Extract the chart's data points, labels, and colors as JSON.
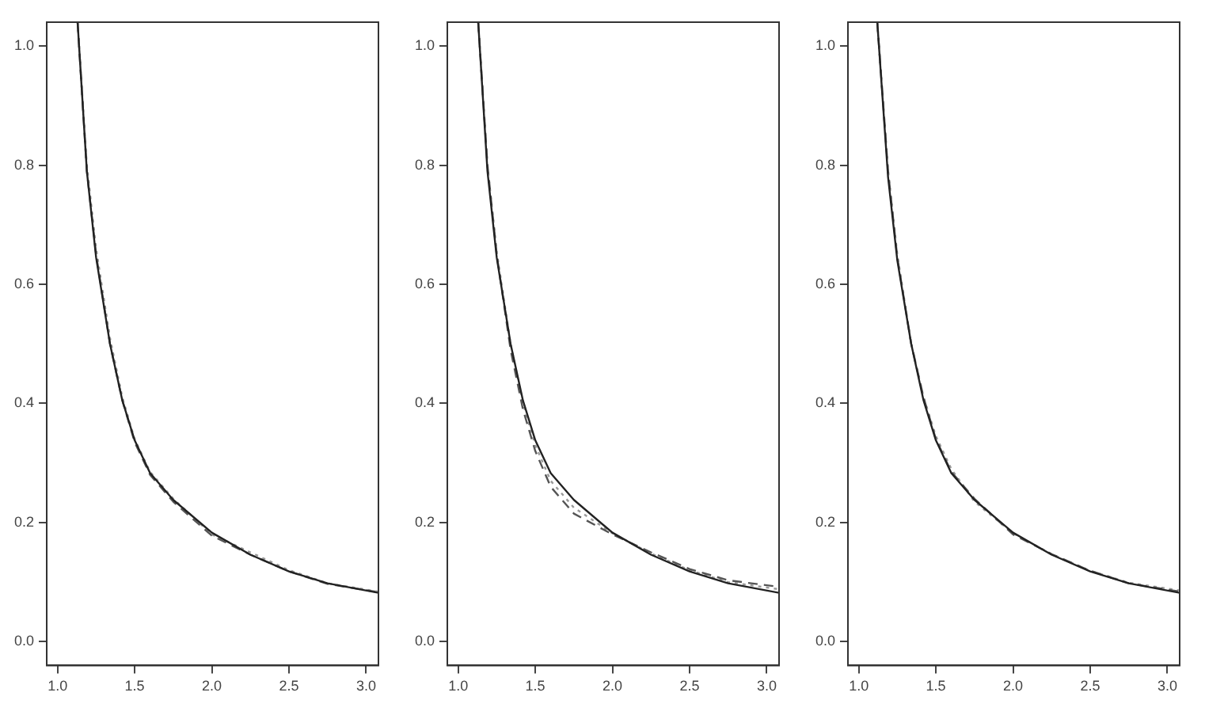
{
  "chart_data": [
    {
      "type": "line",
      "x": [
        1.13,
        1.19,
        1.25,
        1.34,
        1.42,
        1.5,
        1.6,
        1.75,
        2.0,
        2.25,
        2.5,
        2.75,
        3.08
      ],
      "xlim": [
        0.93,
        3.08
      ],
      "ylim": [
        -0.04,
        1.04
      ],
      "xticks": [
        {
          "value": 1,
          "label": "1.0"
        },
        {
          "value": 1.5,
          "label": "1.5"
        },
        {
          "value": 2,
          "label": "2.0"
        },
        {
          "value": 2.5,
          "label": "2.5"
        },
        {
          "value": 3,
          "label": "3.0"
        }
      ],
      "yticks": [
        {
          "value": 0,
          "label": "0.0"
        },
        {
          "value": 0.2,
          "label": "0.2"
        },
        {
          "value": 0.4,
          "label": "0.4"
        },
        {
          "value": 0.6,
          "label": "0.6"
        },
        {
          "value": 0.8,
          "label": "0.8"
        },
        {
          "value": 1,
          "label": "1.0"
        }
      ],
      "grid": false,
      "legend": false,
      "marker": "none",
      "series": [
        {
          "color": "#222222",
          "line_style": "solid",
          "values": [
            1.04,
            0.79,
            0.645,
            0.5,
            0.405,
            0.338,
            0.283,
            0.238,
            0.183,
            0.146,
            0.118,
            0.098,
            0.082
          ]
        },
        {
          "color": "#555555",
          "line_style": "dashed",
          "values": [
            1.04,
            0.79,
            0.65,
            0.5,
            0.405,
            0.335,
            0.28,
            0.235,
            0.178,
            0.146,
            0.118,
            0.097,
            0.083
          ]
        },
        {
          "color": "#999999",
          "line_style": "dotted",
          "values": [
            1.04,
            0.8,
            0.66,
            0.51,
            0.41,
            0.34,
            0.285,
            0.24,
            0.18,
            0.15,
            0.12,
            0.098,
            0.084
          ]
        }
      ]
    },
    {
      "type": "line",
      "x": [
        1.13,
        1.19,
        1.25,
        1.34,
        1.42,
        1.5,
        1.6,
        1.75,
        2.0,
        2.25,
        2.5,
        2.75,
        3.08
      ],
      "xlim": [
        0.93,
        3.08
      ],
      "ylim": [
        -0.04,
        1.04
      ],
      "xticks": [
        {
          "value": 1,
          "label": "1.0"
        },
        {
          "value": 1.5,
          "label": "1.5"
        },
        {
          "value": 2,
          "label": "2.0"
        },
        {
          "value": 2.5,
          "label": "2.5"
        },
        {
          "value": 3,
          "label": "3.0"
        }
      ],
      "yticks": [
        {
          "value": 0,
          "label": "0.0"
        },
        {
          "value": 0.2,
          "label": "0.2"
        },
        {
          "value": 0.4,
          "label": "0.4"
        },
        {
          "value": 0.6,
          "label": "0.6"
        },
        {
          "value": 0.8,
          "label": "0.8"
        },
        {
          "value": 1,
          "label": "1.0"
        }
      ],
      "grid": false,
      "legend": false,
      "marker": "none",
      "series": [
        {
          "color": "#222222",
          "line_style": "solid",
          "values": [
            1.04,
            0.79,
            0.645,
            0.5,
            0.405,
            0.338,
            0.283,
            0.238,
            0.183,
            0.146,
            0.118,
            0.098,
            0.082
          ]
        },
        {
          "color": "#555555",
          "line_style": "dashed",
          "values": [
            1.04,
            0.8,
            0.65,
            0.49,
            0.39,
            0.32,
            0.26,
            0.215,
            0.18,
            0.15,
            0.122,
            0.103,
            0.092
          ]
        },
        {
          "color": "#999999",
          "line_style": "dotted",
          "values": [
            1.04,
            0.8,
            0.655,
            0.5,
            0.4,
            0.33,
            0.27,
            0.225,
            0.182,
            0.148,
            0.12,
            0.1,
            0.088
          ]
        }
      ]
    },
    {
      "type": "line",
      "x": [
        1.12,
        1.19,
        1.25,
        1.34,
        1.42,
        1.5,
        1.6,
        1.75,
        2.0,
        2.25,
        2.5,
        2.75,
        3.08
      ],
      "xlim": [
        0.93,
        3.08
      ],
      "ylim": [
        -0.04,
        1.04
      ],
      "xticks": [
        {
          "value": 1,
          "label": "1.0"
        },
        {
          "value": 1.5,
          "label": "1.5"
        },
        {
          "value": 2,
          "label": "2.0"
        },
        {
          "value": 2.5,
          "label": "2.5"
        },
        {
          "value": 3,
          "label": "3.0"
        }
      ],
      "yticks": [
        {
          "value": 0,
          "label": "0.0"
        },
        {
          "value": 0.2,
          "label": "0.2"
        },
        {
          "value": 0.4,
          "label": "0.4"
        },
        {
          "value": 0.6,
          "label": "0.6"
        },
        {
          "value": 0.8,
          "label": "0.8"
        },
        {
          "value": 1,
          "label": "1.0"
        }
      ],
      "grid": false,
      "legend": false,
      "marker": "none",
      "series": [
        {
          "color": "#222222",
          "line_style": "solid",
          "values": [
            1.04,
            0.78,
            0.64,
            0.5,
            0.405,
            0.338,
            0.283,
            0.238,
            0.183,
            0.146,
            0.118,
            0.098,
            0.082
          ]
        },
        {
          "color": "#555555",
          "line_style": "dashed",
          "values": [
            1.04,
            0.79,
            0.645,
            0.5,
            0.41,
            0.34,
            0.285,
            0.24,
            0.18,
            0.147,
            0.119,
            0.098,
            0.084
          ]
        },
        {
          "color": "#999999",
          "line_style": "dotted",
          "values": [
            1.04,
            0.79,
            0.65,
            0.5,
            0.41,
            0.345,
            0.29,
            0.235,
            0.182,
            0.147,
            0.119,
            0.099,
            0.086
          ]
        }
      ]
    }
  ]
}
